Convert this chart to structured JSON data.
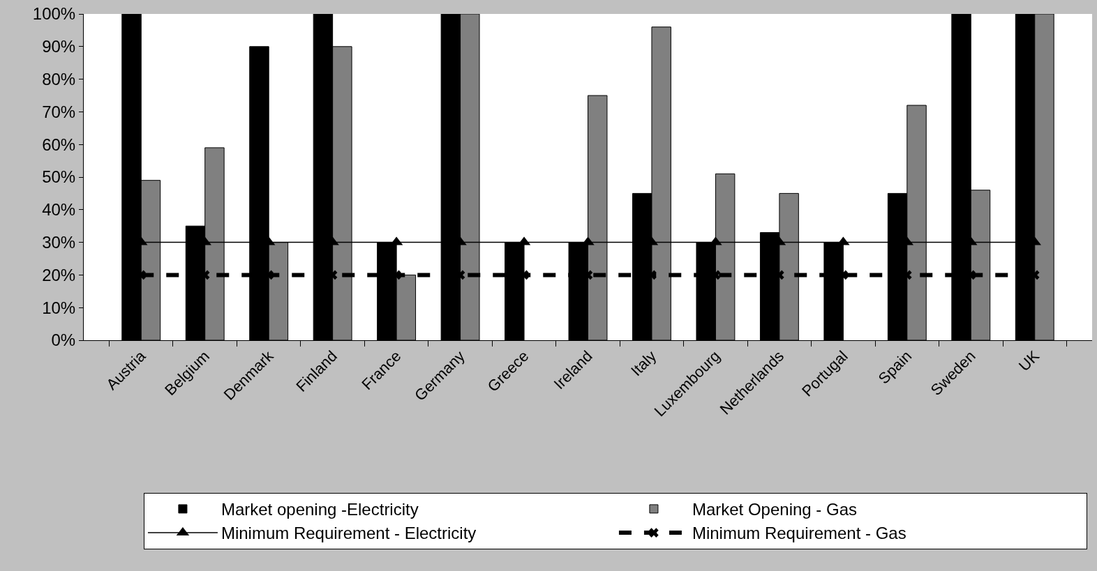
{
  "chart_data": {
    "type": "bar",
    "categories": [
      "Austria",
      "Belgium",
      "Denmark",
      "Finland",
      "France",
      "Germany",
      "Greece",
      "Ireland",
      "Italy",
      "Luxembourg",
      "Netherlands",
      "Portugal",
      "Spain",
      "Sweden",
      "UK"
    ],
    "series": [
      {
        "name": "Market opening -Electricity",
        "color": "#000000",
        "values": [
          100,
          35,
          90,
          100,
          30,
          100,
          30,
          30,
          45,
          30,
          33,
          30,
          45,
          100,
          100
        ]
      },
      {
        "name": "Market Opening - Gas",
        "color": "#808080",
        "values": [
          49,
          59,
          30,
          90,
          20,
          100,
          null,
          75,
          96,
          51,
          45,
          null,
          72,
          46,
          100
        ]
      },
      {
        "name": "Minimum Requirement - Electricity",
        "type": "line",
        "color": "#000000",
        "marker": "triangle",
        "line_style": "solid",
        "values": [
          30,
          30,
          30,
          30,
          30,
          30,
          30,
          30,
          30,
          30,
          30,
          30,
          30,
          30,
          30
        ]
      },
      {
        "name": "Minimum Requirement - Gas",
        "type": "line",
        "color": "#000000",
        "marker": "cross",
        "line_style": "dashed",
        "values": [
          20,
          20,
          20,
          20,
          20,
          20,
          20,
          20,
          20,
          20,
          20,
          20,
          20,
          20,
          20
        ]
      }
    ],
    "ylim": [
      0,
      100
    ],
    "yticks": [
      {
        "value": 0,
        "label": "0%"
      },
      {
        "value": 10,
        "label": "10%"
      },
      {
        "value": 20,
        "label": "20%"
      },
      {
        "value": 30,
        "label": "30%"
      },
      {
        "value": 40,
        "label": "40%"
      },
      {
        "value": 50,
        "label": "50%"
      },
      {
        "value": 60,
        "label": "60%"
      },
      {
        "value": 70,
        "label": "70%"
      },
      {
        "value": 80,
        "label": "80%"
      },
      {
        "value": 90,
        "label": "90%"
      },
      {
        "value": 100,
        "label": "100%"
      }
    ],
    "grid": false,
    "legend": "bottom"
  }
}
